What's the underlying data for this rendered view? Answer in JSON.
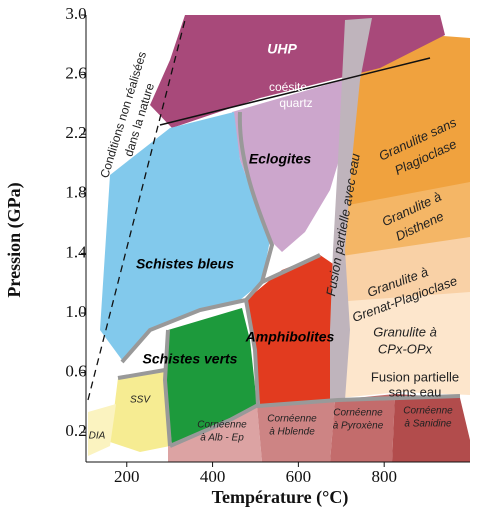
{
  "axes": {
    "x_label": "Température (°C)",
    "y_label": "Pression (GPa)",
    "xlim": [
      105,
      1000
    ],
    "ylim": [
      0,
      3.0
    ],
    "xticks": [
      200,
      400,
      600,
      800
    ],
    "yticks": [
      0.2,
      0.6,
      {
        "value": 1.0,
        "label": "1.0"
      },
      1.4,
      1.8,
      2.2,
      2.6,
      {
        "value": 3.0,
        "label": "3.0"
      }
    ]
  },
  "labels": [
    {
      "lines": [
        "UHP"
      ]
    },
    {
      "lines": [
        "coésite"
      ]
    },
    {
      "lines": [
        "quartz"
      ]
    },
    {
      "lines": [
        "Eclogites"
      ]
    },
    {
      "lines": [
        "Schistes bleus"
      ]
    },
    {
      "lines": [
        "Amphibolites"
      ]
    },
    {
      "lines": [
        "Schistes verts"
      ]
    },
    {
      "lines": [
        "SSV"
      ]
    },
    {
      "lines": [
        "DIA"
      ]
    },
    {
      "lines": [
        "Cornéenne",
        "à Alb - Ep"
      ]
    },
    {
      "lines": [
        "Cornéenne",
        "à Hblende"
      ]
    },
    {
      "lines": [
        "Cornéenne",
        "à Pyroxène"
      ]
    },
    {
      "lines": [
        "Cornéenne",
        "à Sanidine"
      ]
    },
    {
      "lines": [
        "Granulite sans",
        "Plagioclase"
      ]
    },
    {
      "lines": [
        "Granulite à",
        "Disthene"
      ]
    },
    {
      "lines": [
        "Granulite à",
        "Grenat-Plagioclase"
      ]
    },
    {
      "lines": [
        "Granulite à",
        "CPx-OPx"
      ]
    },
    {
      "lines": [
        "Fusion partielle avec eau"
      ]
    },
    {
      "lines": [
        "Fusion partielle",
        "sans eau"
      ]
    },
    {
      "lines": [
        "Conditions non réalisées",
        "dans la nature"
      ]
    }
  ]
}
